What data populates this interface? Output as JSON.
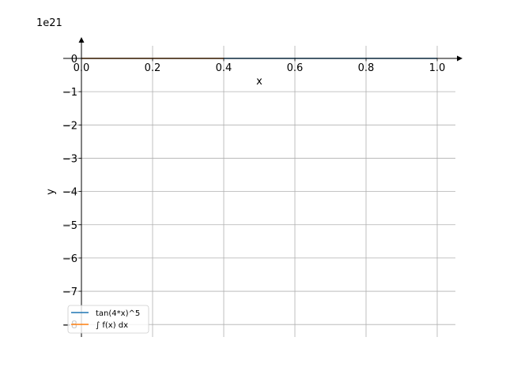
{
  "chart_data": {
    "type": "line",
    "xlabel": "x",
    "ylabel": "y",
    "y_offset_label": "1e21",
    "xlim": [
      0.0,
      1.05
    ],
    "ylim": [
      -8.35,
      0.55
    ],
    "x_ticks": [
      0.0,
      0.2,
      0.4,
      0.6,
      0.8,
      1.0
    ],
    "x_tick_labels": [
      "0.0",
      "0.2",
      "0.4",
      "0.6",
      "0.8",
      "1.0"
    ],
    "y_ticks": [
      0,
      -1,
      -2,
      -3,
      -4,
      -5,
      -6,
      -7,
      -8
    ],
    "y_tick_labels": [
      "0",
      "−1",
      "−2",
      "−3",
      "−4",
      "−5",
      "−6",
      "−7",
      "−8"
    ],
    "grid": true,
    "legend_position": "lower-left",
    "series": [
      {
        "name": "tan(4*x)^5",
        "color": "#1f77b4",
        "x": [
          0.0,
          0.1,
          0.2,
          0.3,
          0.4,
          0.5,
          0.6,
          0.7,
          0.8,
          0.9,
          1.0
        ],
        "y": [
          0,
          0,
          0,
          0,
          0,
          0,
          0,
          0,
          0,
          0,
          0
        ]
      },
      {
        "name": "∫ f(x) dx",
        "color": "#ff7f0e",
        "x": [
          0.0,
          0.1,
          0.2,
          0.3,
          0.4
        ],
        "y": [
          0,
          0,
          0,
          0,
          0
        ]
      }
    ]
  }
}
